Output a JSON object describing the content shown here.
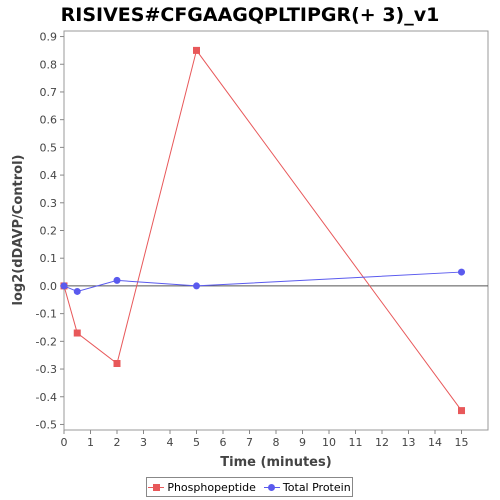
{
  "chart_data": {
    "type": "line",
    "title": "RISIVES#CFGAAGQPLTIPGR(+ 3)_v1",
    "xlabel": "Time (minutes)",
    "ylabel": "log2(dDAVP/Control)",
    "xlim": [
      0,
      16
    ],
    "ylim": [
      -0.52,
      0.92
    ],
    "x_ticks": [
      0,
      1,
      2,
      3,
      4,
      5,
      6,
      7,
      8,
      9,
      10,
      11,
      12,
      13,
      14,
      15
    ],
    "y_ticks": [
      -0.5,
      -0.4,
      -0.3,
      -0.2,
      -0.1,
      0.0,
      0.1,
      0.2,
      0.3,
      0.4,
      0.5,
      0.6,
      0.7,
      0.8,
      0.9
    ],
    "y_tick_labels": [
      "-0.5",
      "-0.4",
      "-0.3",
      "-0.2",
      "-0.1",
      "0.0",
      "0.1",
      "0.2",
      "0.3",
      "0.4",
      "0.5",
      "0.6",
      "0.7",
      "0.8",
      "0.9"
    ],
    "legend_position": "bottom",
    "series": [
      {
        "name": "Phosphopeptide",
        "color": "#e8585a",
        "marker": "square",
        "x": [
          0,
          0.5,
          2,
          5,
          15
        ],
        "y": [
          0.0,
          -0.17,
          -0.28,
          0.85,
          -0.45
        ]
      },
      {
        "name": "Total Protein",
        "color": "#5a5aee",
        "marker": "circle",
        "x": [
          0,
          0.5,
          2,
          5,
          15
        ],
        "y": [
          0.0,
          -0.02,
          0.02,
          0.0,
          0.05
        ]
      }
    ]
  }
}
